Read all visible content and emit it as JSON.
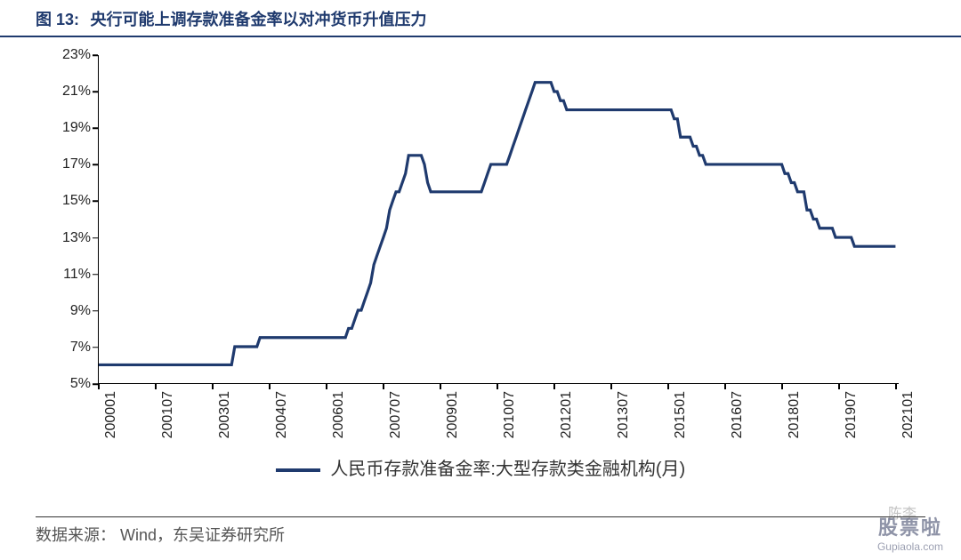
{
  "figure": {
    "label": "图 13:",
    "title": "央行可能上调存款准备金率以对冲货币升值压力"
  },
  "chart": {
    "type": "line",
    "line_color": "#1f3a6e",
    "line_width": 3.2,
    "background_color": "#ffffff",
    "axis_color": "#000000",
    "tick_font_size": 16,
    "ylim": [
      5,
      23
    ],
    "ytick_step": 2,
    "y_suffix": "%",
    "x_labels": [
      "200001",
      "200107",
      "200301",
      "200407",
      "200601",
      "200707",
      "200901",
      "201007",
      "201201",
      "201307",
      "201501",
      "201607",
      "201801",
      "201907",
      "202101"
    ],
    "x_range_months": 253,
    "x_tick_months": [
      0,
      18,
      36,
      54,
      72,
      90,
      108,
      126,
      144,
      162,
      180,
      198,
      216,
      234,
      252
    ],
    "series": [
      {
        "m": 0,
        "v": 6.0
      },
      {
        "m": 12,
        "v": 6.0
      },
      {
        "m": 24,
        "v": 6.0
      },
      {
        "m": 36,
        "v": 6.0
      },
      {
        "m": 42,
        "v": 6.0
      },
      {
        "m": 43,
        "v": 7.0
      },
      {
        "m": 46,
        "v": 7.0
      },
      {
        "m": 47,
        "v": 7.0
      },
      {
        "m": 50,
        "v": 7.0
      },
      {
        "m": 51,
        "v": 7.5
      },
      {
        "m": 54,
        "v": 7.5
      },
      {
        "m": 72,
        "v": 7.5
      },
      {
        "m": 78,
        "v": 7.5
      },
      {
        "m": 79,
        "v": 8.0
      },
      {
        "m": 80,
        "v": 8.0
      },
      {
        "m": 81,
        "v": 8.5
      },
      {
        "m": 82,
        "v": 9.0
      },
      {
        "m": 83,
        "v": 9.0
      },
      {
        "m": 84,
        "v": 9.5
      },
      {
        "m": 85,
        "v": 10.0
      },
      {
        "m": 86,
        "v": 10.5
      },
      {
        "m": 87,
        "v": 11.5
      },
      {
        "m": 88,
        "v": 12.0
      },
      {
        "m": 89,
        "v": 12.5
      },
      {
        "m": 90,
        "v": 13.0
      },
      {
        "m": 91,
        "v": 13.5
      },
      {
        "m": 92,
        "v": 14.5
      },
      {
        "m": 93,
        "v": 15.0
      },
      {
        "m": 94,
        "v": 15.5
      },
      {
        "m": 95,
        "v": 15.5
      },
      {
        "m": 96,
        "v": 16.0
      },
      {
        "m": 97,
        "v": 16.5
      },
      {
        "m": 98,
        "v": 17.5
      },
      {
        "m": 99,
        "v": 17.5
      },
      {
        "m": 100,
        "v": 17.5
      },
      {
        "m": 101,
        "v": 17.5
      },
      {
        "m": 102,
        "v": 17.5
      },
      {
        "m": 103,
        "v": 17.0
      },
      {
        "m": 104,
        "v": 16.0
      },
      {
        "m": 105,
        "v": 15.5
      },
      {
        "m": 108,
        "v": 15.5
      },
      {
        "m": 120,
        "v": 15.5
      },
      {
        "m": 121,
        "v": 15.5
      },
      {
        "m": 122,
        "v": 16.0
      },
      {
        "m": 123,
        "v": 16.5
      },
      {
        "m": 124,
        "v": 17.0
      },
      {
        "m": 125,
        "v": 17.0
      },
      {
        "m": 126,
        "v": 17.0
      },
      {
        "m": 127,
        "v": 17.0
      },
      {
        "m": 128,
        "v": 17.0
      },
      {
        "m": 129,
        "v": 17.0
      },
      {
        "m": 130,
        "v": 17.5
      },
      {
        "m": 131,
        "v": 18.0
      },
      {
        "m": 132,
        "v": 18.5
      },
      {
        "m": 133,
        "v": 19.0
      },
      {
        "m": 134,
        "v": 19.5
      },
      {
        "m": 135,
        "v": 20.0
      },
      {
        "m": 136,
        "v": 20.5
      },
      {
        "m": 137,
        "v": 21.0
      },
      {
        "m": 138,
        "v": 21.5
      },
      {
        "m": 139,
        "v": 21.5
      },
      {
        "m": 140,
        "v": 21.5
      },
      {
        "m": 141,
        "v": 21.5
      },
      {
        "m": 142,
        "v": 21.5
      },
      {
        "m": 143,
        "v": 21.5
      },
      {
        "m": 144,
        "v": 21.0
      },
      {
        "m": 145,
        "v": 21.0
      },
      {
        "m": 146,
        "v": 20.5
      },
      {
        "m": 147,
        "v": 20.5
      },
      {
        "m": 148,
        "v": 20.0
      },
      {
        "m": 150,
        "v": 20.0
      },
      {
        "m": 162,
        "v": 20.0
      },
      {
        "m": 174,
        "v": 20.0
      },
      {
        "m": 180,
        "v": 20.0
      },
      {
        "m": 181,
        "v": 20.0
      },
      {
        "m": 182,
        "v": 19.5
      },
      {
        "m": 183,
        "v": 19.5
      },
      {
        "m": 184,
        "v": 18.5
      },
      {
        "m": 185,
        "v": 18.5
      },
      {
        "m": 186,
        "v": 18.5
      },
      {
        "m": 187,
        "v": 18.5
      },
      {
        "m": 188,
        "v": 18.0
      },
      {
        "m": 189,
        "v": 18.0
      },
      {
        "m": 190,
        "v": 17.5
      },
      {
        "m": 191,
        "v": 17.5
      },
      {
        "m": 192,
        "v": 17.0
      },
      {
        "m": 193,
        "v": 17.0
      },
      {
        "m": 194,
        "v": 17.0
      },
      {
        "m": 198,
        "v": 17.0
      },
      {
        "m": 210,
        "v": 17.0
      },
      {
        "m": 216,
        "v": 17.0
      },
      {
        "m": 217,
        "v": 16.5
      },
      {
        "m": 218,
        "v": 16.5
      },
      {
        "m": 219,
        "v": 16.0
      },
      {
        "m": 220,
        "v": 16.0
      },
      {
        "m": 221,
        "v": 15.5
      },
      {
        "m": 222,
        "v": 15.5
      },
      {
        "m": 223,
        "v": 15.5
      },
      {
        "m": 224,
        "v": 14.5
      },
      {
        "m": 225,
        "v": 14.5
      },
      {
        "m": 226,
        "v": 14.0
      },
      {
        "m": 227,
        "v": 14.0
      },
      {
        "m": 228,
        "v": 13.5
      },
      {
        "m": 229,
        "v": 13.5
      },
      {
        "m": 230,
        "v": 13.5
      },
      {
        "m": 231,
        "v": 13.5
      },
      {
        "m": 232,
        "v": 13.5
      },
      {
        "m": 233,
        "v": 13.0
      },
      {
        "m": 234,
        "v": 13.0
      },
      {
        "m": 235,
        "v": 13.0
      },
      {
        "m": 236,
        "v": 13.0
      },
      {
        "m": 237,
        "v": 13.0
      },
      {
        "m": 238,
        "v": 13.0
      },
      {
        "m": 239,
        "v": 12.5
      },
      {
        "m": 240,
        "v": 12.5
      },
      {
        "m": 244,
        "v": 12.5
      },
      {
        "m": 252,
        "v": 12.5
      }
    ]
  },
  "legend": {
    "label": "人民币存款准备金率:大型存款类金融机构(月)"
  },
  "source": {
    "label": "数据来源：",
    "text": "Wind，东吴证券研究所"
  },
  "watermarks": {
    "w1": "陈李",
    "w2_line1": "股票啦",
    "w2_line2": "Gupiaola.com"
  }
}
